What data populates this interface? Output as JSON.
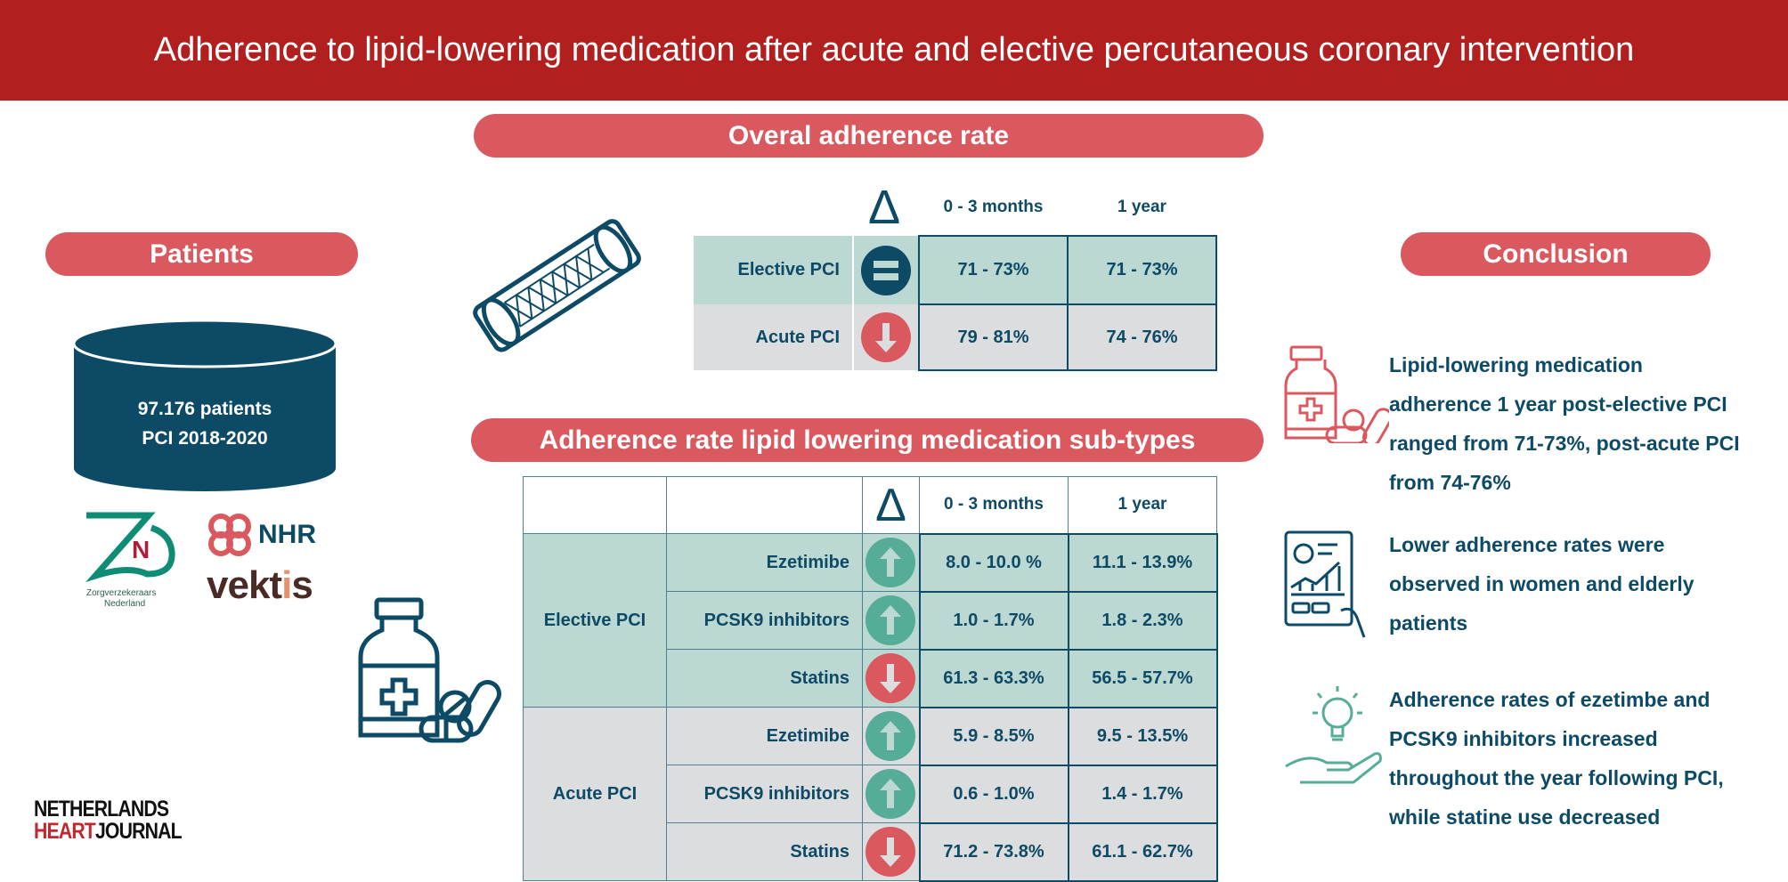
{
  "title": "Adherence to lipid-lowering medication after acute and elective percutaneous coronary intervention",
  "colors": {
    "header_red": "#b21f1f",
    "pill_red": "#d9595f",
    "navy": "#0d4a66",
    "teal_row": "#bcd8d2",
    "gray_row": "#dcdddf",
    "up_green": "#55ac97",
    "down_red": "#d9595f"
  },
  "patients": {
    "heading": "Patients",
    "count": "97.176 patients",
    "period": "PCI 2018-2020",
    "logos": [
      "Zorgverzekeraars Nederland",
      "NHR",
      "vektis",
      "Netherlands Heart Journal"
    ]
  },
  "overall": {
    "heading": "Overal adherence rate",
    "delta_symbol": "Δ",
    "columns": [
      "0 - 3 months",
      "1 year"
    ],
    "rows": [
      {
        "label": "Elective PCI",
        "trend": "equal-icon",
        "values": [
          "71 - 73%",
          "71 - 73%"
        ]
      },
      {
        "label": "Acute PCI",
        "trend": "arrow-down-icon",
        "values": [
          "79 - 81%",
          "74 - 76%"
        ]
      }
    ]
  },
  "subtypes": {
    "heading": "Adherence rate lipid lowering medication sub-types",
    "delta_symbol": "Δ",
    "columns": [
      "0 - 3 months",
      "1 year"
    ],
    "groups": [
      {
        "label": "Elective PCI",
        "rows": [
          {
            "label": "Ezetimibe",
            "trend": "up",
            "values": [
              "8.0 - 10.0 %",
              "11.1 - 13.9%"
            ]
          },
          {
            "label": "PCSK9 inhibitors",
            "trend": "up",
            "values": [
              "1.0 - 1.7%",
              "1.8 - 2.3%"
            ]
          },
          {
            "label": "Statins",
            "trend": "down",
            "values": [
              "61.3 - 63.3%",
              "56.5 - 57.7%"
            ]
          }
        ]
      },
      {
        "label": "Acute PCI",
        "rows": [
          {
            "label": "Ezetimibe",
            "trend": "up",
            "values": [
              "5.9 - 8.5%",
              "9.5 - 13.5%"
            ]
          },
          {
            "label": "PCSK9 inhibitors",
            "trend": "up",
            "values": [
              "0.6 - 1.0%",
              "1.4 - 1.7%"
            ]
          },
          {
            "label": "Statins",
            "trend": "down",
            "values": [
              "71.2 - 73.8%",
              "61.1 - 62.7%"
            ]
          }
        ]
      }
    ]
  },
  "conclusion": {
    "heading": "Conclusion",
    "items": [
      {
        "icon": "medication-icon",
        "lines": [
          "Lipid-lowering medication",
          "adherence 1 year post-elective PCI",
          "ranged from 71-73%, post-acute PCI",
          "from 74-76%"
        ]
      },
      {
        "icon": "report-tablet-icon",
        "lines": [
          "Lower adherence rates were",
          "observed in women and elderly",
          "patients"
        ]
      },
      {
        "icon": "lightbulb-hand-icon",
        "lines": [
          "Adherence rates of ezetimbe and",
          "PCSK9 inhibitors increased",
          "throughout the year following PCI,",
          "while statine use decreased"
        ]
      }
    ]
  }
}
